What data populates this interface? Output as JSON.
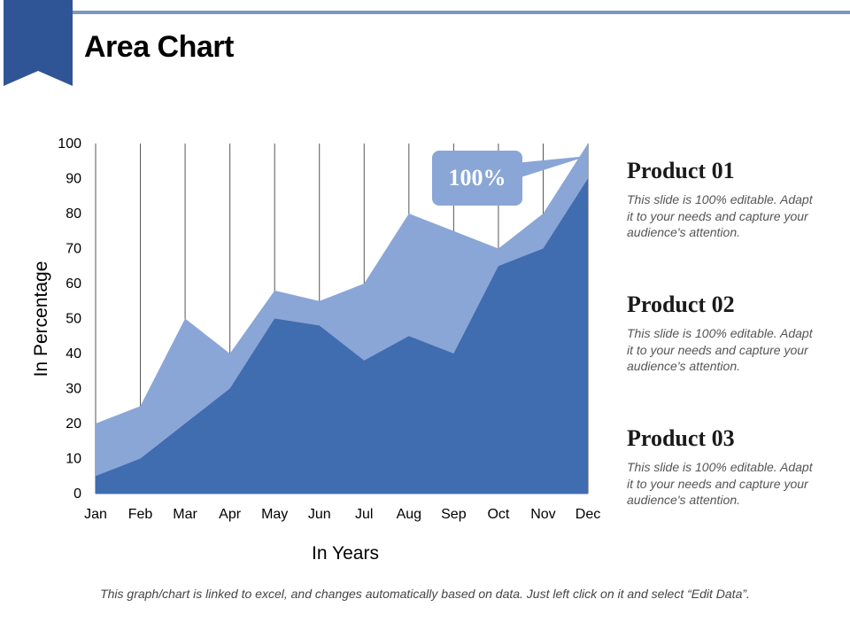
{
  "header": {
    "title": "Area Chart"
  },
  "chart_data": {
    "type": "area",
    "categories": [
      "Jan",
      "Feb",
      "Mar",
      "Apr",
      "May",
      "Jun",
      "Jul",
      "Aug",
      "Sep",
      "Oct",
      "Nov",
      "Dec"
    ],
    "series": [
      {
        "values": [
          20,
          25,
          50,
          40,
          58,
          55,
          60,
          80,
          75,
          70,
          80,
          100
        ],
        "color": "#8aa6d6"
      },
      {
        "values": [
          5,
          10,
          20,
          30,
          50,
          48,
          38,
          45,
          40,
          65,
          70,
          90
        ],
        "color": "#406cb0"
      }
    ],
    "xlabel": "In Years",
    "ylabel": "In Percentage",
    "ylim": [
      0,
      100
    ],
    "yticks": [
      0,
      10,
      20,
      30,
      40,
      50,
      60,
      70,
      80,
      90,
      100
    ],
    "grid": "vertical lines",
    "annotation": {
      "text": "100%",
      "points_to": "Dec",
      "color": "#8aa6d6"
    }
  },
  "products": [
    {
      "title": "Product 01",
      "desc": "This slide is 100% editable. Adapt it to your needs and capture your audience's attention."
    },
    {
      "title": "Product 02",
      "desc": "This slide is 100% editable. Adapt it to your needs and capture your audience's attention."
    },
    {
      "title": "Product 03",
      "desc": "This slide is 100% editable. Adapt it to your needs and capture your audience's attention."
    }
  ],
  "footer": {
    "note": "This graph/chart is linked to excel, and changes automatically based on data. Just left click on it and select “Edit Data”."
  },
  "theme": {
    "accent": "#2f5597",
    "light": "#8aa6d6",
    "dark": "#406cb0",
    "rule": "#7f97bd"
  }
}
